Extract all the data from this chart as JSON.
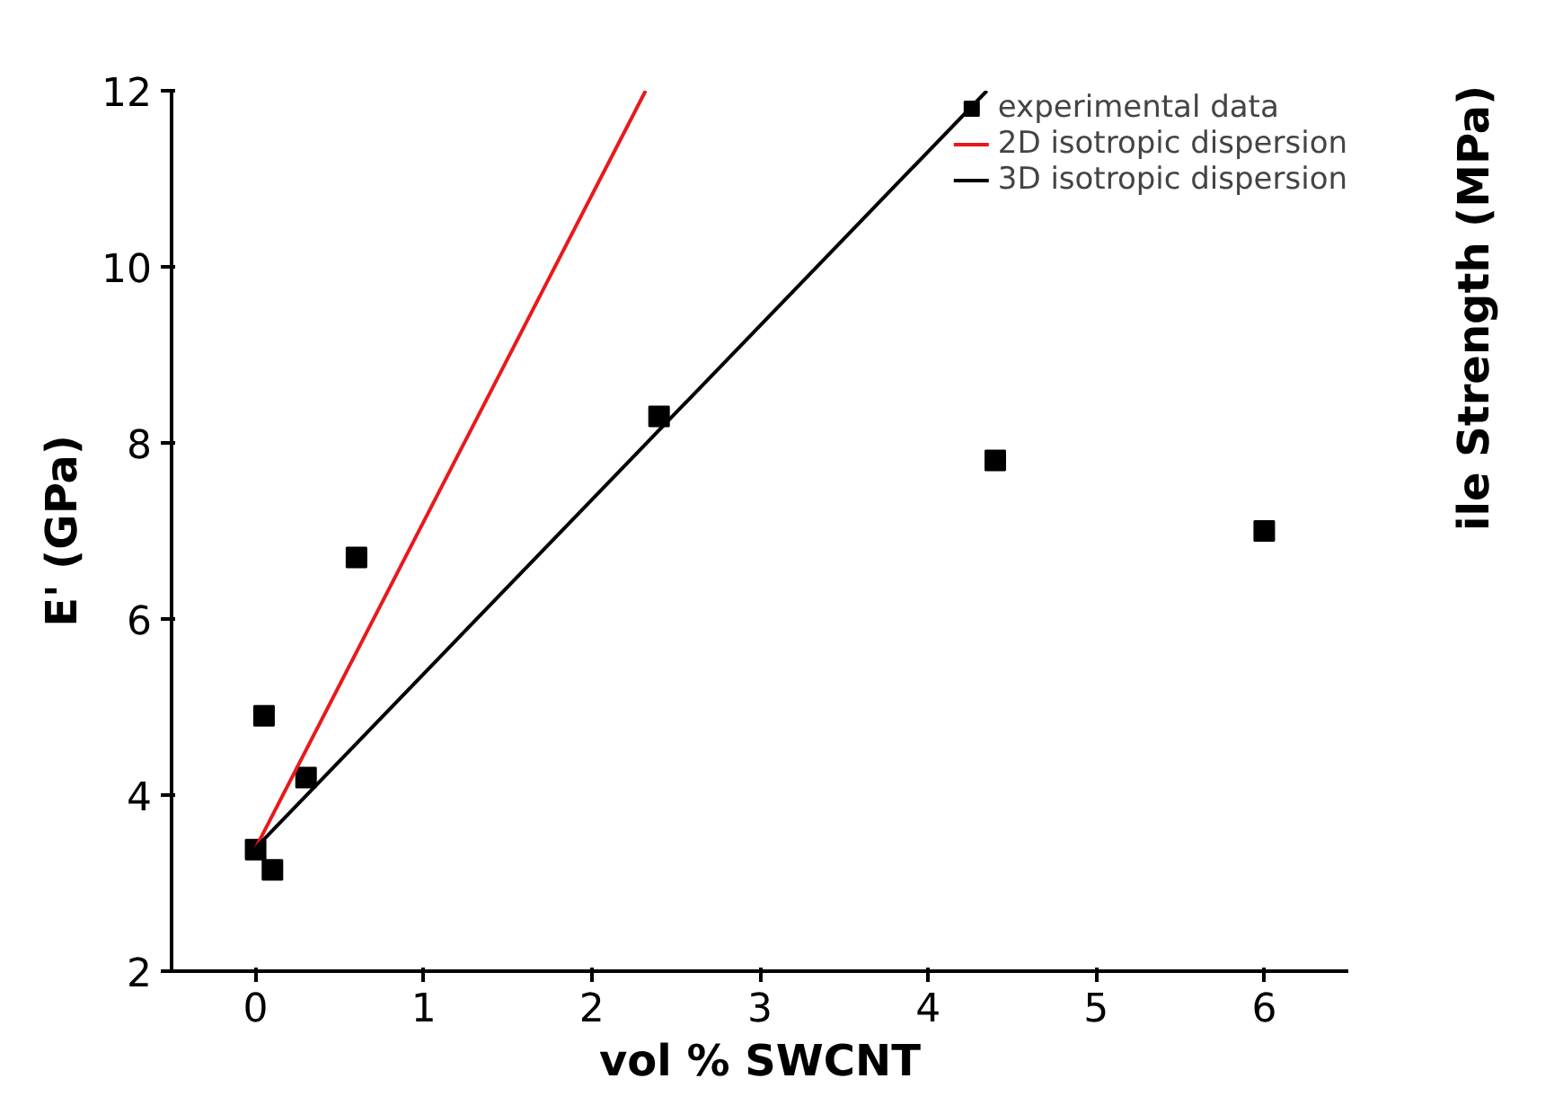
{
  "chart_data": {
    "type": "scatter",
    "xlabel": "vol % SWCNT",
    "ylabel": "E' (GPa)",
    "xlim": [
      -0.5,
      6.5
    ],
    "ylim": [
      2,
      12
    ],
    "xticks": [
      0,
      1,
      2,
      3,
      4,
      5,
      6
    ],
    "yticks": [
      2,
      4,
      6,
      8,
      10,
      12
    ],
    "grid": false,
    "legend": "top right",
    "series": [
      {
        "name": "experimental data",
        "marker": "square",
        "color": "#000000",
        "x": [
          0,
          0.05,
          0.1,
          0.3,
          0.6,
          2.4,
          4.4,
          6
        ],
        "values": [
          3.38,
          4.9,
          3.15,
          4.2,
          6.7,
          8.3,
          7.8,
          7.0
        ]
      },
      {
        "name": "2D isotropic dispersion",
        "type": "line",
        "color": "#e8191c",
        "x": [
          0,
          2.32
        ],
        "values": [
          3.4,
          12
        ]
      },
      {
        "name": "3D isotropic dispersion",
        "type": "line",
        "color": "#000000",
        "x": [
          0,
          4.35
        ],
        "values": [
          3.4,
          12
        ]
      }
    ],
    "annotations": [
      "ile Strength (MPa)"
    ]
  }
}
